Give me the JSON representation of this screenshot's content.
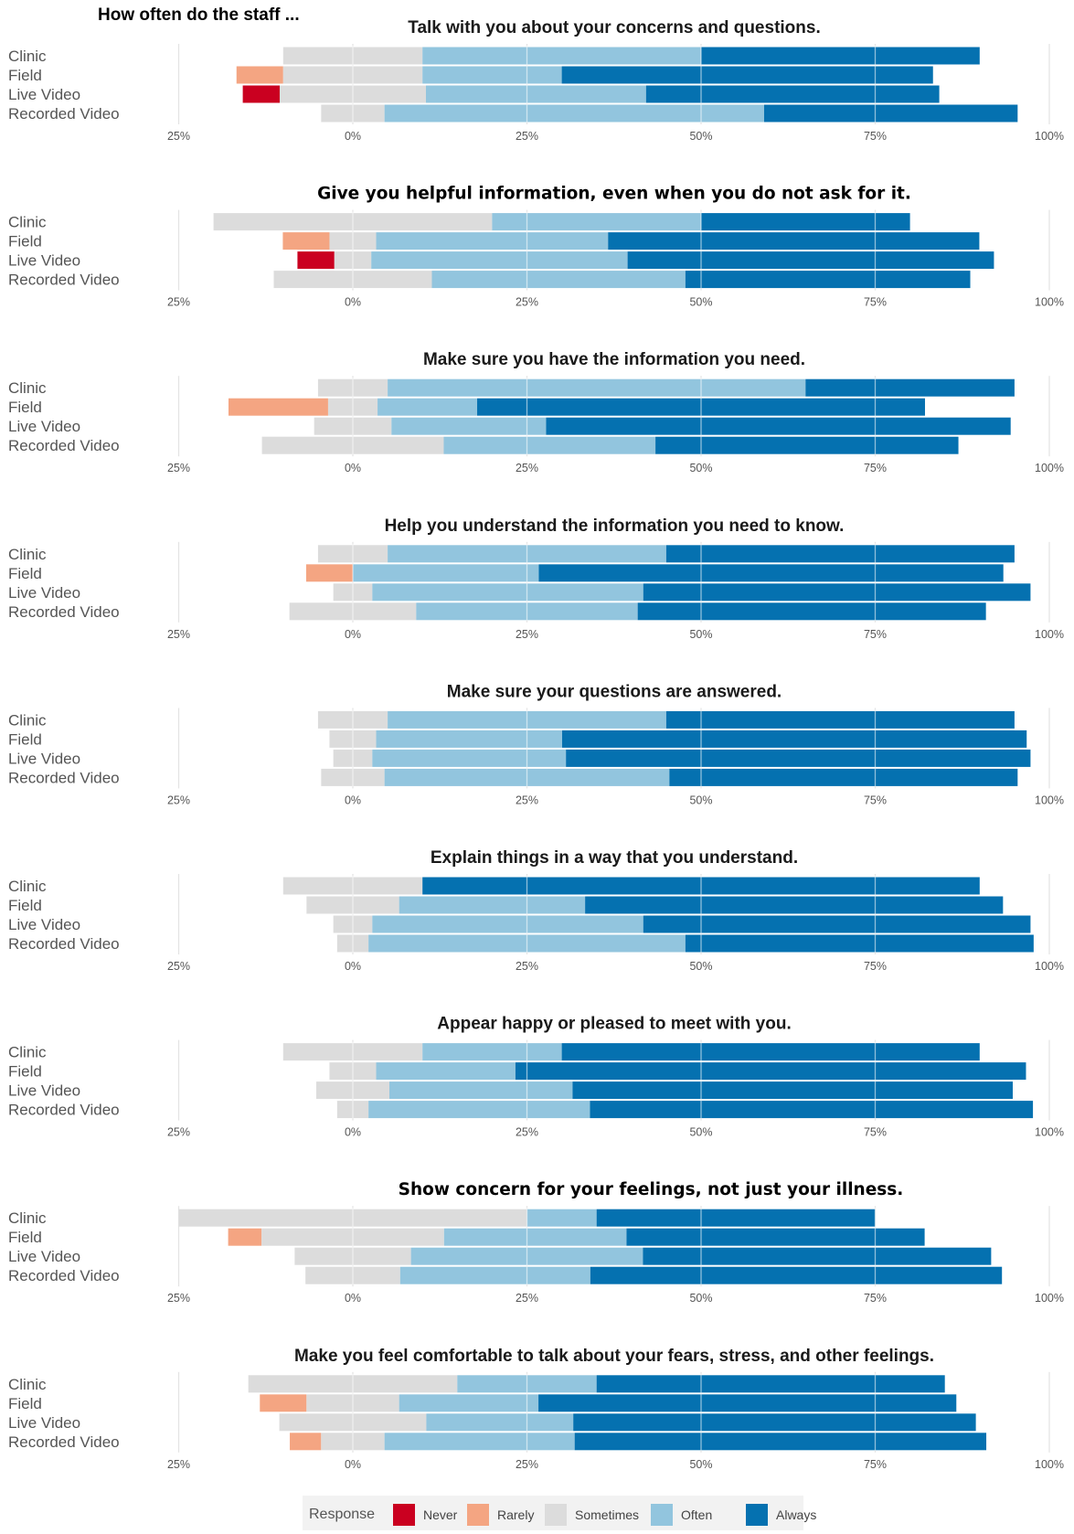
{
  "header": "How often do the staff ...",
  "chart_data": {
    "type": "bar",
    "orientation": "horizontal",
    "stacking": "diverging",
    "categories": [
      "Clinic",
      "Field",
      "Live Video",
      "Recorded Video"
    ],
    "xlim": [
      -25,
      100
    ],
    "ticks": [
      -25,
      0,
      25,
      50,
      75,
      100
    ],
    "tick_labels": [
      "25%",
      "0%",
      "25%",
      "50%",
      "75%",
      "100%"
    ],
    "grid": true,
    "legend": {
      "title": "Response",
      "position": "bottom",
      "labels": [
        "Never",
        "Rarely",
        "Sometimes",
        "Often",
        "Always"
      ]
    },
    "colors": {
      "Never": "#ca0020",
      "Rarely": "#f4a582",
      "Sometimes": "#dcdcdc",
      "Often": "#92c5de",
      "Always": "#0571b0"
    },
    "panels": [
      {
        "title": "Talk with you about your concerns and questions.",
        "rows": [
          {
            "never": 0,
            "rarely": 0,
            "sometimes": 20,
            "often": 40,
            "always": 40
          },
          {
            "never": 0,
            "rarely": 6.7,
            "sometimes": 20,
            "often": 20,
            "always": 53.3
          },
          {
            "never": 5.3,
            "rarely": 0,
            "sometimes": 21,
            "often": 31.6,
            "always": 42.1
          },
          {
            "never": 0,
            "rarely": 0,
            "sometimes": 9.1,
            "often": 54.5,
            "always": 36.4
          }
        ]
      },
      {
        "title": "Give you helpful information, even when you do not ask for it.",
        "rows": [
          {
            "never": 0,
            "rarely": 0,
            "sometimes": 40,
            "often": 30,
            "always": 30
          },
          {
            "never": 0,
            "rarely": 6.7,
            "sometimes": 6.7,
            "often": 33.3,
            "always": 53.3
          },
          {
            "never": 5.3,
            "rarely": 0,
            "sometimes": 5.3,
            "often": 36.8,
            "always": 52.6
          },
          {
            "never": 0,
            "rarely": 0,
            "sometimes": 22.7,
            "often": 36.4,
            "always": 40.9
          }
        ]
      },
      {
        "title": "Make sure you have the information you need.",
        "rows": [
          {
            "never": 0,
            "rarely": 0,
            "sometimes": 10,
            "often": 60,
            "always": 30
          },
          {
            "never": 0,
            "rarely": 14.3,
            "sometimes": 7.1,
            "often": 14.3,
            "always": 64.3
          },
          {
            "never": 0,
            "rarely": 0,
            "sometimes": 11.1,
            "often": 22.2,
            "always": 66.7
          },
          {
            "never": 0,
            "rarely": 0,
            "sometimes": 26.1,
            "often": 30.4,
            "always": 43.5
          }
        ]
      },
      {
        "title": "Help you understand the information you need to know.",
        "rows": [
          {
            "never": 0,
            "rarely": 0,
            "sometimes": 10,
            "often": 40,
            "always": 50
          },
          {
            "never": 0,
            "rarely": 6.7,
            "sometimes": 0,
            "often": 26.7,
            "always": 66.7
          },
          {
            "never": 0,
            "rarely": 0,
            "sometimes": 5.6,
            "often": 38.9,
            "always": 55.6
          },
          {
            "never": 0,
            "rarely": 0,
            "sometimes": 18.2,
            "often": 31.8,
            "always": 50
          }
        ]
      },
      {
        "title": "Make sure your questions are answered.",
        "rows": [
          {
            "never": 0,
            "rarely": 0,
            "sometimes": 10,
            "often": 40,
            "always": 50
          },
          {
            "never": 0,
            "rarely": 0,
            "sometimes": 6.7,
            "often": 26.7,
            "always": 66.7
          },
          {
            "never": 0,
            "rarely": 0,
            "sometimes": 5.6,
            "often": 27.8,
            "always": 66.7
          },
          {
            "never": 0,
            "rarely": 0,
            "sometimes": 9.1,
            "often": 40.9,
            "always": 50
          }
        ]
      },
      {
        "title": "Explain things in a way that you understand.",
        "rows": [
          {
            "never": 0,
            "rarely": 0,
            "sometimes": 20,
            "often": 0,
            "always": 80
          },
          {
            "never": 0,
            "rarely": 0,
            "sometimes": 13.3,
            "often": 26.7,
            "always": 60
          },
          {
            "never": 0,
            "rarely": 0,
            "sometimes": 5.6,
            "often": 38.9,
            "always": 55.6
          },
          {
            "never": 0,
            "rarely": 0,
            "sometimes": 4.5,
            "often": 45.5,
            "always": 50
          }
        ]
      },
      {
        "title": "Appear happy or pleased to meet with you.",
        "rows": [
          {
            "never": 0,
            "rarely": 0,
            "sometimes": 20,
            "often": 20,
            "always": 60
          },
          {
            "never": 0,
            "rarely": 0,
            "sometimes": 6.7,
            "often": 20,
            "always": 73.3
          },
          {
            "never": 0,
            "rarely": 0,
            "sometimes": 10.5,
            "often": 26.3,
            "always": 63.2
          },
          {
            "never": 0,
            "rarely": 0,
            "sometimes": 4.5,
            "often": 31.8,
            "always": 63.6
          }
        ]
      },
      {
        "title": "Show concern for your feelings, not just your illness.",
        "rows": [
          {
            "never": 0,
            "rarely": 0,
            "sometimes": 50,
            "often": 10,
            "always": 40
          },
          {
            "never": 0,
            "rarely": 4.8,
            "sometimes": 26.2,
            "often": 26.2,
            "always": 42.8
          },
          {
            "never": 0,
            "rarely": 0,
            "sometimes": 16.7,
            "often": 33.3,
            "always": 50
          },
          {
            "never": 0,
            "rarely": 0,
            "sometimes": 13.6,
            "often": 27.3,
            "always": 59.1
          }
        ]
      },
      {
        "title": "Make you feel comfortable to talk about your fears, stress, and other feelings.",
        "rows": [
          {
            "never": 0,
            "rarely": 0,
            "sometimes": 30,
            "often": 20,
            "always": 50
          },
          {
            "never": 0,
            "rarely": 6.7,
            "sometimes": 13.3,
            "often": 20,
            "always": 60
          },
          {
            "never": 0,
            "rarely": 0,
            "sometimes": 21.1,
            "often": 21.1,
            "always": 57.8
          },
          {
            "never": 0,
            "rarely": 4.5,
            "sometimes": 9.1,
            "often": 27.3,
            "always": 59.1
          }
        ]
      }
    ]
  }
}
